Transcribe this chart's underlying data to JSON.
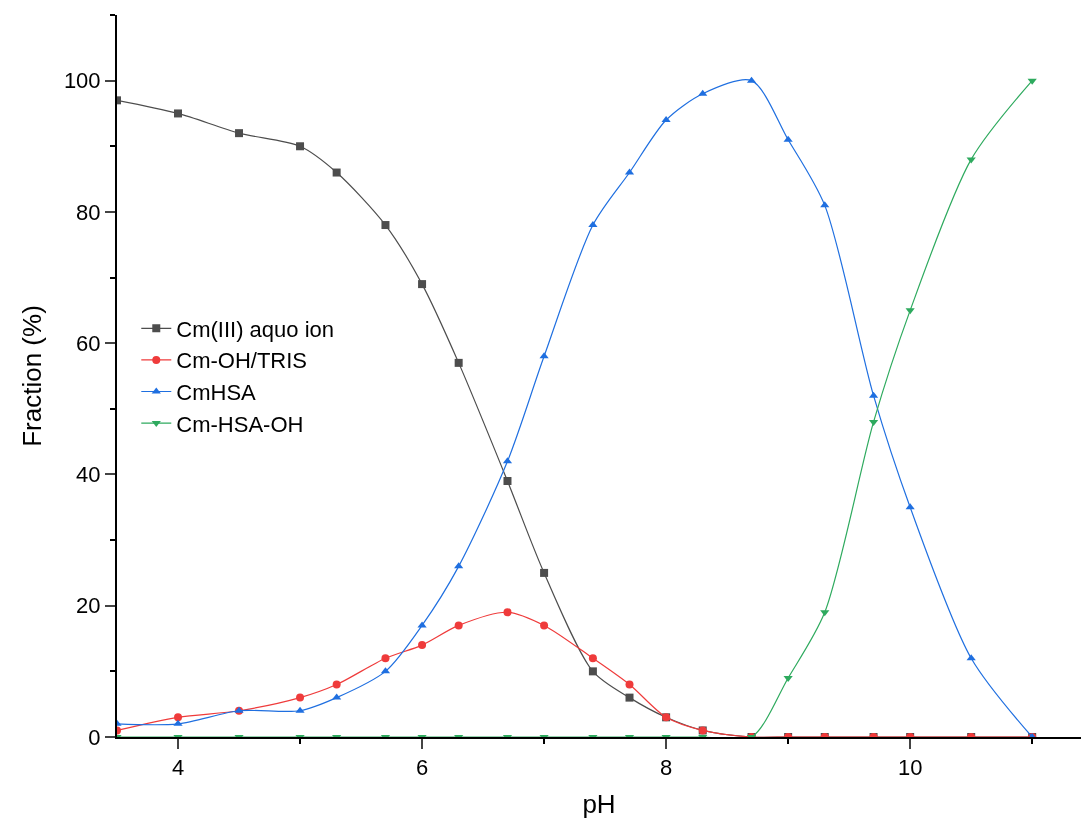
{
  "chart_data": {
    "type": "line",
    "xlabel": "pH",
    "ylabel": "Fraction (%)",
    "x": [
      3.5,
      4,
      4.5,
      5,
      5.3,
      5.7,
      6,
      6.3,
      6.7,
      7,
      7.4,
      7.7,
      8,
      8.3,
      8.7,
      9,
      9.3,
      9.7,
      10,
      10.5,
      11
    ],
    "series": [
      {
        "name": "Cm(III) aquo ion",
        "color": "#4d4d4d",
        "marker": "square",
        "values": [
          97,
          95,
          92,
          90,
          86,
          78,
          69,
          57,
          39,
          25,
          10,
          6,
          3,
          1,
          0,
          0,
          0,
          0,
          0,
          0,
          0
        ]
      },
      {
        "name": "Cm-OH/TRIS",
        "color": "#ef3b3b",
        "marker": "circle",
        "values": [
          1,
          3,
          4,
          6,
          8,
          12,
          14,
          17,
          19,
          17,
          12,
          8,
          3,
          1,
          0,
          0,
          0,
          0,
          0,
          0,
          0
        ]
      },
      {
        "name": "CmHSA",
        "color": "#1f6fe0",
        "marker": "triangle-up",
        "values": [
          2,
          2,
          4,
          4,
          6,
          10,
          17,
          26,
          42,
          58,
          78,
          86,
          94,
          98,
          100,
          91,
          81,
          52,
          35,
          12,
          0
        ]
      },
      {
        "name": "Cm-HSA-OH",
        "color": "#2eaa5e",
        "marker": "triangle-down",
        "values": [
          0,
          0,
          0,
          0,
          0,
          0,
          0,
          0,
          0,
          0,
          0,
          0,
          0,
          0,
          0,
          9,
          19,
          48,
          65,
          88,
          100
        ]
      }
    ],
    "xlim": [
      3.5,
      11.4
    ],
    "xticks": [
      4,
      6,
      8,
      10
    ],
    "ylim": [
      0,
      110
    ],
    "yticks": [
      0,
      20,
      40,
      60,
      80,
      100
    ],
    "legend": "left"
  }
}
